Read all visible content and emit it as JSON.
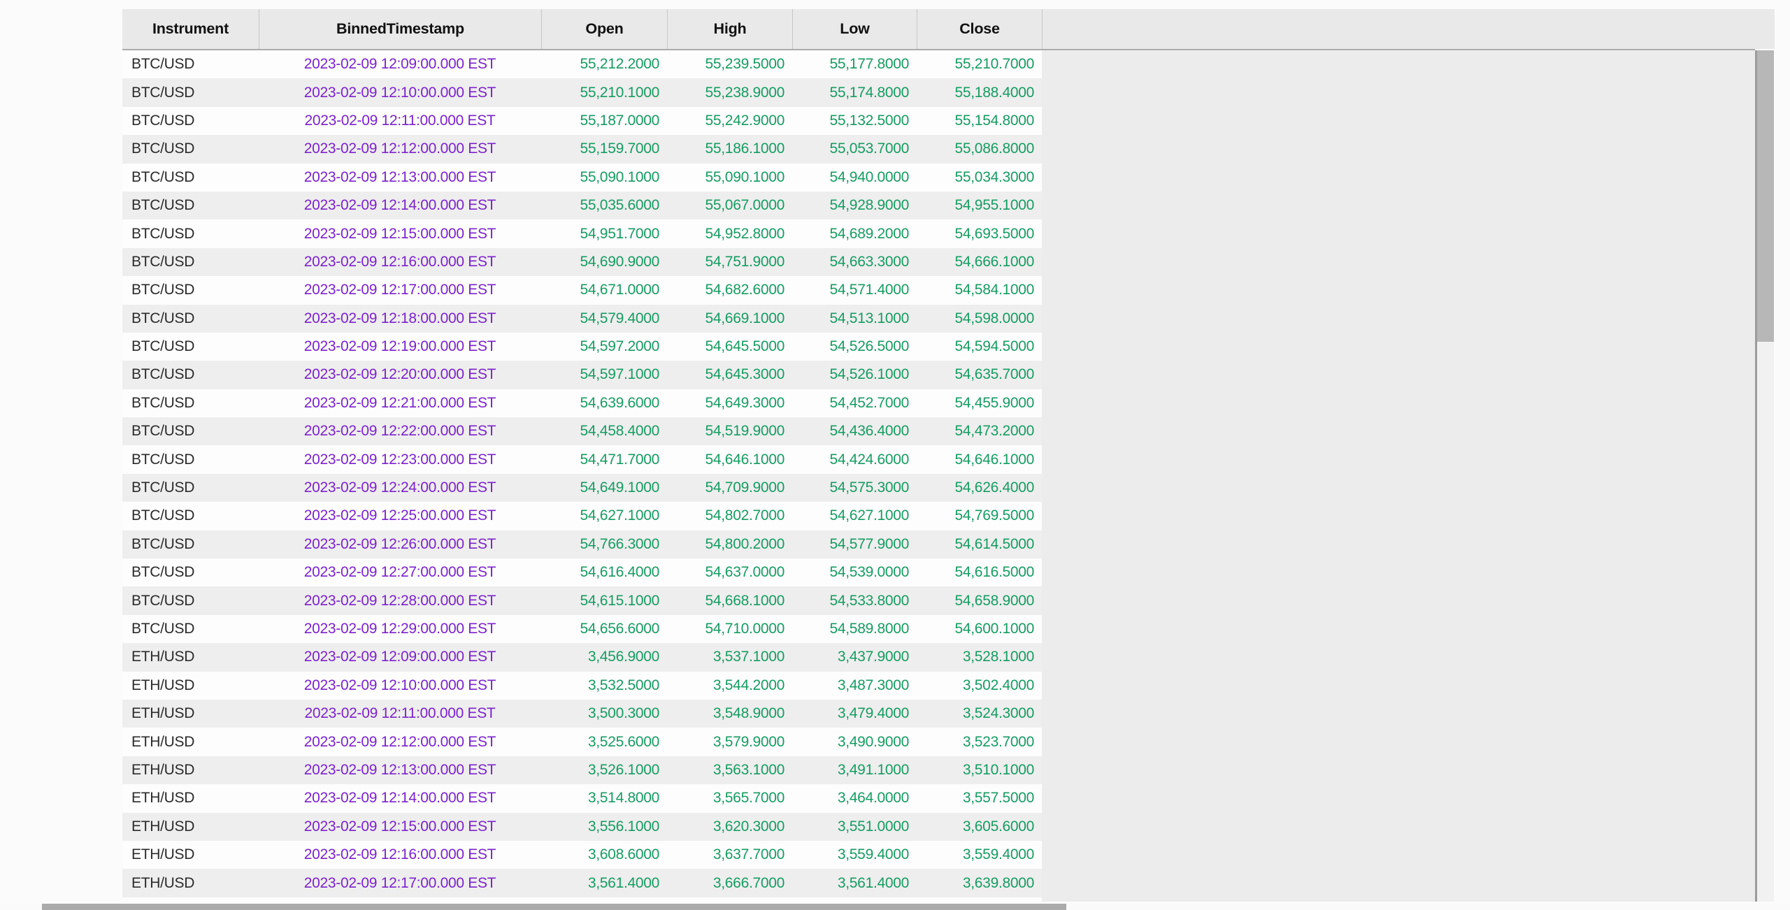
{
  "colors": {
    "timestamp-color": "#7c22cc",
    "price-color": "#169c62",
    "header-bg": "#e9e9e9",
    "row-alt-bg": "#eeeeee"
  },
  "icons": {
    "menu": "hamburger-menu-icon"
  },
  "table": {
    "columns": [
      {
        "key": "instrument",
        "label": "Instrument"
      },
      {
        "key": "timestamp",
        "label": "BinnedTimestamp"
      },
      {
        "key": "open",
        "label": "Open"
      },
      {
        "key": "high",
        "label": "High"
      },
      {
        "key": "low",
        "label": "Low"
      },
      {
        "key": "close",
        "label": "Close"
      }
    ],
    "rows": [
      {
        "instrument": "BTC/USD",
        "timestamp": "2023-02-09 12:09:00.000 EST",
        "open": "55,212.2000",
        "high": "55,239.5000",
        "low": "55,177.8000",
        "close": "55,210.7000"
      },
      {
        "instrument": "BTC/USD",
        "timestamp": "2023-02-09 12:10:00.000 EST",
        "open": "55,210.1000",
        "high": "55,238.9000",
        "low": "55,174.8000",
        "close": "55,188.4000"
      },
      {
        "instrument": "BTC/USD",
        "timestamp": "2023-02-09 12:11:00.000 EST",
        "open": "55,187.0000",
        "high": "55,242.9000",
        "low": "55,132.5000",
        "close": "55,154.8000"
      },
      {
        "instrument": "BTC/USD",
        "timestamp": "2023-02-09 12:12:00.000 EST",
        "open": "55,159.7000",
        "high": "55,186.1000",
        "low": "55,053.7000",
        "close": "55,086.8000"
      },
      {
        "instrument": "BTC/USD",
        "timestamp": "2023-02-09 12:13:00.000 EST",
        "open": "55,090.1000",
        "high": "55,090.1000",
        "low": "54,940.0000",
        "close": "55,034.3000"
      },
      {
        "instrument": "BTC/USD",
        "timestamp": "2023-02-09 12:14:00.000 EST",
        "open": "55,035.6000",
        "high": "55,067.0000",
        "low": "54,928.9000",
        "close": "54,955.1000"
      },
      {
        "instrument": "BTC/USD",
        "timestamp": "2023-02-09 12:15:00.000 EST",
        "open": "54,951.7000",
        "high": "54,952.8000",
        "low": "54,689.2000",
        "close": "54,693.5000"
      },
      {
        "instrument": "BTC/USD",
        "timestamp": "2023-02-09 12:16:00.000 EST",
        "open": "54,690.9000",
        "high": "54,751.9000",
        "low": "54,663.3000",
        "close": "54,666.1000"
      },
      {
        "instrument": "BTC/USD",
        "timestamp": "2023-02-09 12:17:00.000 EST",
        "open": "54,671.0000",
        "high": "54,682.6000",
        "low": "54,571.4000",
        "close": "54,584.1000"
      },
      {
        "instrument": "BTC/USD",
        "timestamp": "2023-02-09 12:18:00.000 EST",
        "open": "54,579.4000",
        "high": "54,669.1000",
        "low": "54,513.1000",
        "close": "54,598.0000"
      },
      {
        "instrument": "BTC/USD",
        "timestamp": "2023-02-09 12:19:00.000 EST",
        "open": "54,597.2000",
        "high": "54,645.5000",
        "low": "54,526.5000",
        "close": "54,594.5000"
      },
      {
        "instrument": "BTC/USD",
        "timestamp": "2023-02-09 12:20:00.000 EST",
        "open": "54,597.1000",
        "high": "54,645.3000",
        "low": "54,526.1000",
        "close": "54,635.7000"
      },
      {
        "instrument": "BTC/USD",
        "timestamp": "2023-02-09 12:21:00.000 EST",
        "open": "54,639.6000",
        "high": "54,649.3000",
        "low": "54,452.7000",
        "close": "54,455.9000"
      },
      {
        "instrument": "BTC/USD",
        "timestamp": "2023-02-09 12:22:00.000 EST",
        "open": "54,458.4000",
        "high": "54,519.9000",
        "low": "54,436.4000",
        "close": "54,473.2000"
      },
      {
        "instrument": "BTC/USD",
        "timestamp": "2023-02-09 12:23:00.000 EST",
        "open": "54,471.7000",
        "high": "54,646.1000",
        "low": "54,424.6000",
        "close": "54,646.1000"
      },
      {
        "instrument": "BTC/USD",
        "timestamp": "2023-02-09 12:24:00.000 EST",
        "open": "54,649.1000",
        "high": "54,709.9000",
        "low": "54,575.3000",
        "close": "54,626.4000"
      },
      {
        "instrument": "BTC/USD",
        "timestamp": "2023-02-09 12:25:00.000 EST",
        "open": "54,627.1000",
        "high": "54,802.7000",
        "low": "54,627.1000",
        "close": "54,769.5000"
      },
      {
        "instrument": "BTC/USD",
        "timestamp": "2023-02-09 12:26:00.000 EST",
        "open": "54,766.3000",
        "high": "54,800.2000",
        "low": "54,577.9000",
        "close": "54,614.5000"
      },
      {
        "instrument": "BTC/USD",
        "timestamp": "2023-02-09 12:27:00.000 EST",
        "open": "54,616.4000",
        "high": "54,637.0000",
        "low": "54,539.0000",
        "close": "54,616.5000"
      },
      {
        "instrument": "BTC/USD",
        "timestamp": "2023-02-09 12:28:00.000 EST",
        "open": "54,615.1000",
        "high": "54,668.1000",
        "low": "54,533.8000",
        "close": "54,658.9000"
      },
      {
        "instrument": "BTC/USD",
        "timestamp": "2023-02-09 12:29:00.000 EST",
        "open": "54,656.6000",
        "high": "54,710.0000",
        "low": "54,589.8000",
        "close": "54,600.1000"
      },
      {
        "instrument": "ETH/USD",
        "timestamp": "2023-02-09 12:09:00.000 EST",
        "open": "3,456.9000",
        "high": "3,537.1000",
        "low": "3,437.9000",
        "close": "3,528.1000"
      },
      {
        "instrument": "ETH/USD",
        "timestamp": "2023-02-09 12:10:00.000 EST",
        "open": "3,532.5000",
        "high": "3,544.2000",
        "low": "3,487.3000",
        "close": "3,502.4000"
      },
      {
        "instrument": "ETH/USD",
        "timestamp": "2023-02-09 12:11:00.000 EST",
        "open": "3,500.3000",
        "high": "3,548.9000",
        "low": "3,479.4000",
        "close": "3,524.3000"
      },
      {
        "instrument": "ETH/USD",
        "timestamp": "2023-02-09 12:12:00.000 EST",
        "open": "3,525.6000",
        "high": "3,579.9000",
        "low": "3,490.9000",
        "close": "3,523.7000"
      },
      {
        "instrument": "ETH/USD",
        "timestamp": "2023-02-09 12:13:00.000 EST",
        "open": "3,526.1000",
        "high": "3,563.1000",
        "low": "3,491.1000",
        "close": "3,510.1000"
      },
      {
        "instrument": "ETH/USD",
        "timestamp": "2023-02-09 12:14:00.000 EST",
        "open": "3,514.8000",
        "high": "3,565.7000",
        "low": "3,464.0000",
        "close": "3,557.5000"
      },
      {
        "instrument": "ETH/USD",
        "timestamp": "2023-02-09 12:15:00.000 EST",
        "open": "3,556.1000",
        "high": "3,620.3000",
        "low": "3,551.0000",
        "close": "3,605.6000"
      },
      {
        "instrument": "ETH/USD",
        "timestamp": "2023-02-09 12:16:00.000 EST",
        "open": "3,608.6000",
        "high": "3,637.7000",
        "low": "3,559.4000",
        "close": "3,559.4000"
      },
      {
        "instrument": "ETH/USD",
        "timestamp": "2023-02-09 12:17:00.000 EST",
        "open": "3,561.4000",
        "high": "3,666.7000",
        "low": "3,561.4000",
        "close": "3,639.8000"
      }
    ]
  }
}
